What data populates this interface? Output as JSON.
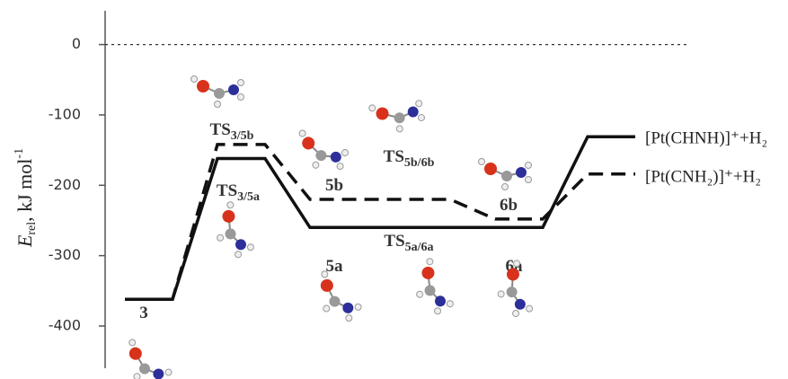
{
  "chart_data": {
    "type": "line",
    "ylabel": {
      "text": "E",
      "sub": "rel",
      "rest": ", kJ mol",
      "sup": "-1"
    },
    "categories": [
      null,
      null,
      null,
      null,
      null,
      null
    ],
    "series": [
      {
        "name": "[Pt(CHNH)]⁺+H₂",
        "color": "#111111",
        "dash": "solid",
        "values": [
          -362,
          -162,
          -260,
          -260,
          -260,
          -131
        ]
      },
      {
        "name": "[Pt(CNH₂)]⁺+H₂",
        "color": "#111111",
        "dash": "dashed",
        "values": [
          -362,
          -142,
          -220,
          -220,
          -248,
          -184
        ]
      }
    ],
    "annotations": [
      {
        "text": "3"
      },
      {
        "text": "TS",
        "sub": "3/5b"
      },
      {
        "text": "TS",
        "sub": "3/5a"
      },
      {
        "text": "5b"
      },
      {
        "text": "TS",
        "sub": "5b/6b"
      },
      {
        "text": "5a"
      },
      {
        "text": "TS",
        "sub": "5a/6a"
      },
      {
        "text": "6b"
      },
      {
        "text": "6a"
      }
    ],
    "ylim": [
      -460,
      48
    ],
    "yticks": [
      0,
      -100,
      -200,
      -300,
      -400
    ],
    "zero_line": true
  }
}
